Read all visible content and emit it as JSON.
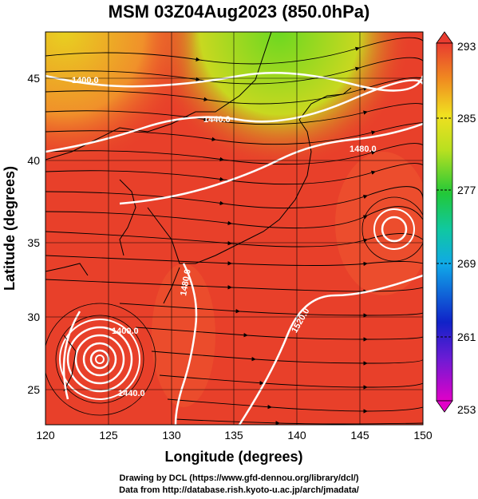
{
  "title": "MSM 03Z04Aug2023 (850.0hPa)",
  "chart_data": {
    "type": "map",
    "xlabel": "Longitude (degrees)",
    "ylabel": "Latitude  (degrees)",
    "xlim": [
      120,
      150
    ],
    "ylim": [
      22.5,
      47.5
    ],
    "x_ticks": [
      "120",
      "125",
      "130",
      "135",
      "140",
      "145",
      "150"
    ],
    "y_ticks": [
      "25",
      "30",
      "35",
      "40",
      "45"
    ],
    "colorbar": {
      "range": [
        253,
        293
      ],
      "labels": [
        "293",
        "285",
        "277",
        "269",
        "261",
        "253"
      ]
    },
    "contour_labels": [
      "1400.0",
      "1440.0",
      "1480.0",
      "1480.0",
      "1520.0",
      "1400.0",
      "1440.0"
    ],
    "colors": {
      "background_field": "#e8402a",
      "contour": "#ffffff",
      "streamline": "#000000"
    }
  },
  "credits": {
    "line1": "Drawing by DCL (https://www.gfd-dennou.org/library/dcl/)",
    "line2": "Data from http://database.rish.kyoto-u.ac.jp/arch/jmadata/"
  }
}
